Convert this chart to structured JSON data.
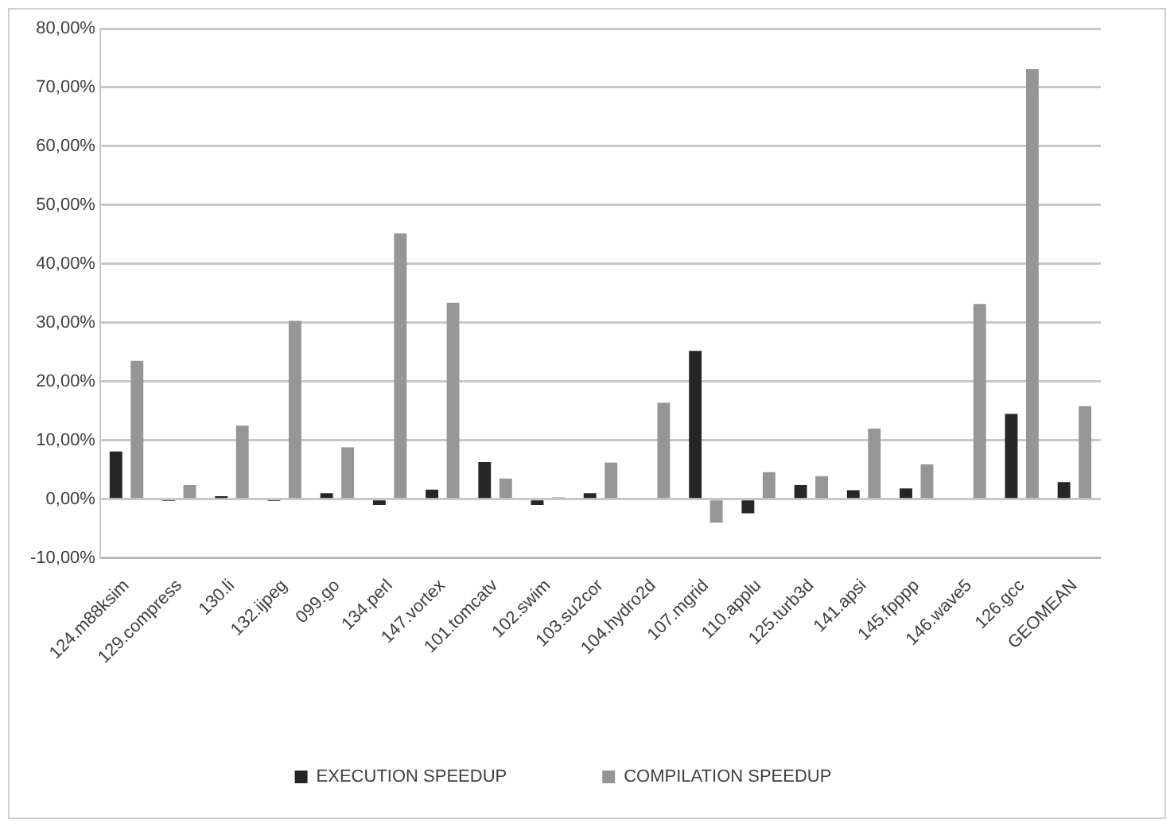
{
  "chart_data": {
    "type": "bar",
    "categories": [
      "124.m88ksim",
      "129.compress",
      "130.li",
      "132.ijpeg",
      "099.go",
      "134.perl",
      "147.vortex",
      "101.tomcatv",
      "102.swim",
      "103.su2cor",
      "104.hydro2d",
      "107.mgrid",
      "110.applu",
      "125.turb3d",
      "141.apsi",
      "145.fpppp",
      "146.wave5",
      "126.gcc",
      "GEOMEAN"
    ],
    "series": [
      {
        "name": "EXECUTION SPEEDUP",
        "color": "#262626",
        "values": [
          8.1,
          -0.3,
          0.5,
          -0.3,
          1.0,
          -1.0,
          1.6,
          6.3,
          -1.0,
          1.0,
          0,
          25.2,
          -2.4,
          2.4,
          1.5,
          1.8,
          0,
          14.5,
          2.9
        ]
      },
      {
        "name": "COMPILATION SPEEDUP",
        "color": "#969696",
        "values": [
          23.5,
          2.4,
          12.5,
          30.3,
          8.8,
          45.2,
          33.4,
          3.5,
          0.3,
          6.2,
          16.4,
          -4.0,
          4.6,
          3.9,
          12.0,
          5.9,
          33.2,
          73.1,
          15.8
        ]
      }
    ],
    "ylim": [
      -10,
      80
    ],
    "yticks": [
      {
        "value": -10,
        "label": "-10,00%"
      },
      {
        "value": 0,
        "label": "0,00%"
      },
      {
        "value": 10,
        "label": "10,00%"
      },
      {
        "value": 20,
        "label": "20,00%"
      },
      {
        "value": 30,
        "label": "30,00%"
      },
      {
        "value": 40,
        "label": "40,00%"
      },
      {
        "value": 50,
        "label": "50,00%"
      },
      {
        "value": 60,
        "label": "60,00%"
      },
      {
        "value": 70,
        "label": "70,00%"
      },
      {
        "value": 80,
        "label": "80,00%"
      }
    ],
    "grid": "y",
    "legend": "bottom"
  }
}
